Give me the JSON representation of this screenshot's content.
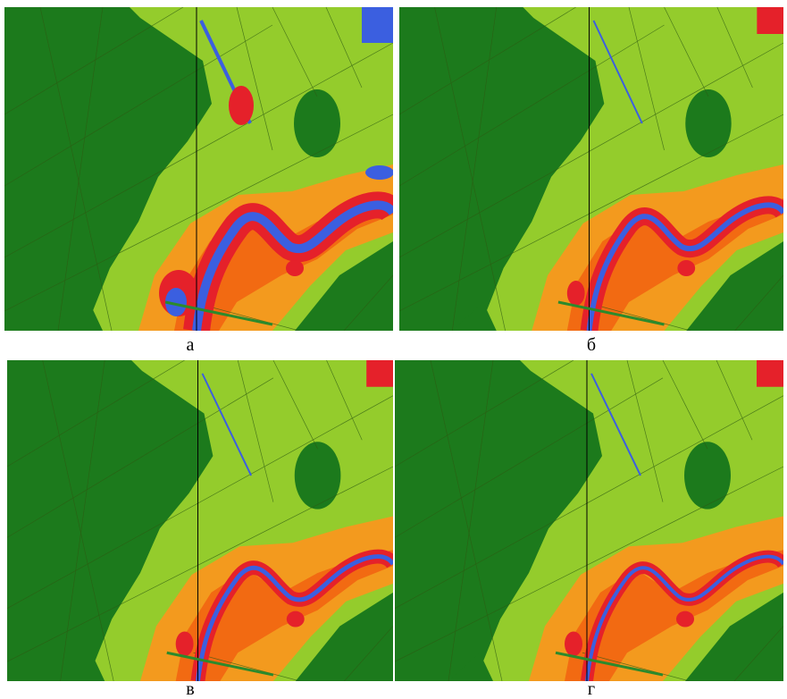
{
  "panels": [
    {
      "label": "а"
    },
    {
      "label": "б"
    },
    {
      "label": "в"
    },
    {
      "label": "г"
    }
  ]
}
